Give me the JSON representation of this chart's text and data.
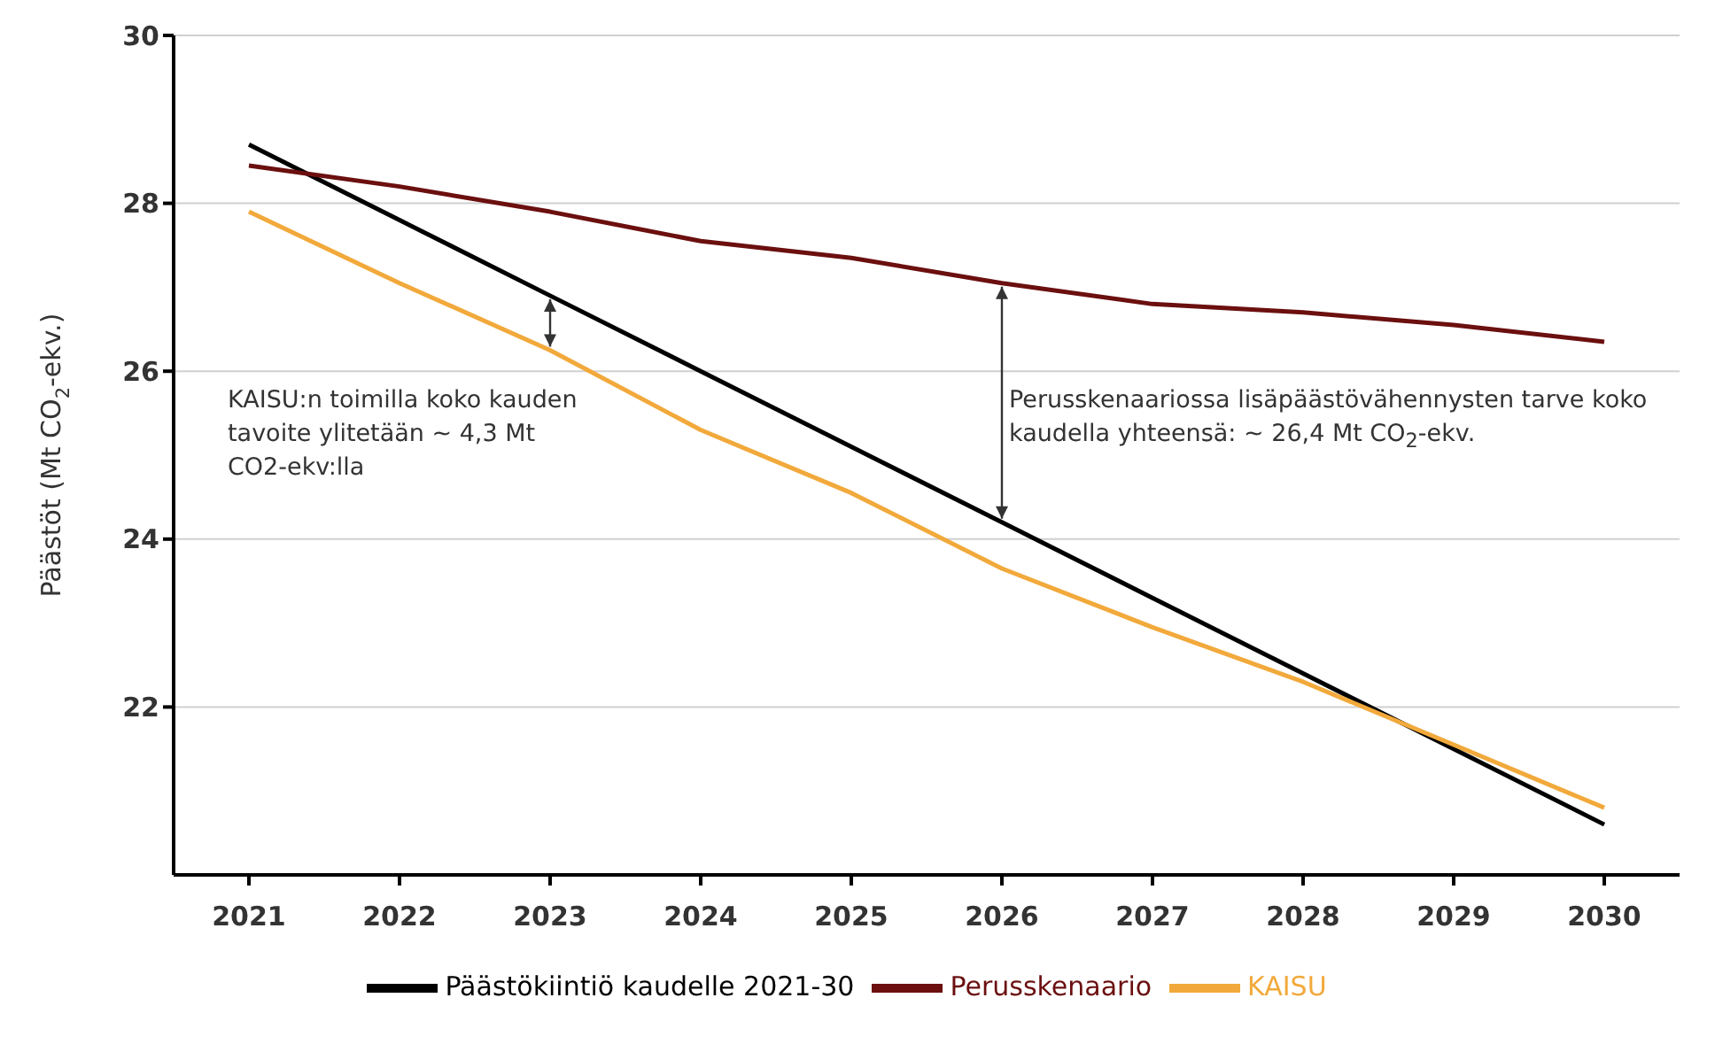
{
  "chart_data": {
    "type": "line",
    "ylabel": "Päästöt (Mt CO$_{2}$-ekv.)",
    "categories": [
      "2021",
      "2022",
      "2023",
      "2024",
      "2025",
      "2026",
      "2027",
      "2028",
      "2029",
      "2030"
    ],
    "series": [
      {
        "name": "Päästökiintiö kaudelle 2021-30",
        "color": "#000000",
        "values": [
          28.7,
          27.8,
          26.9,
          26.0,
          25.1,
          24.2,
          23.3,
          22.4,
          21.5,
          20.6
        ]
      },
      {
        "name": "Perusskenaario",
        "color": "#6b0f0f",
        "values": [
          28.45,
          28.2,
          27.9,
          27.55,
          27.35,
          27.05,
          26.8,
          26.7,
          26.55,
          26.35
        ]
      },
      {
        "name": "KAISU",
        "color": "#f2a93b",
        "values": [
          27.9,
          27.05,
          26.25,
          25.3,
          24.55,
          23.65,
          22.95,
          22.3,
          21.55,
          20.8
        ]
      }
    ],
    "ylim": [
      20,
      30
    ],
    "yticks": [
      22,
      24,
      26,
      28,
      30
    ],
    "grid": "y",
    "legend": "bottom",
    "marker": "none",
    "line_style": "solid",
    "annotations": [
      "KAISU:n toimilla koko kauden tavoite ylitetään ~ 4,3 Mt CO2-ekv:lla",
      "Perusskenaariossa lisäpäästövähennysten tarve koko kaudella yhteensä: ~ 26,4 Mt CO$_{2}$-ekv."
    ]
  }
}
